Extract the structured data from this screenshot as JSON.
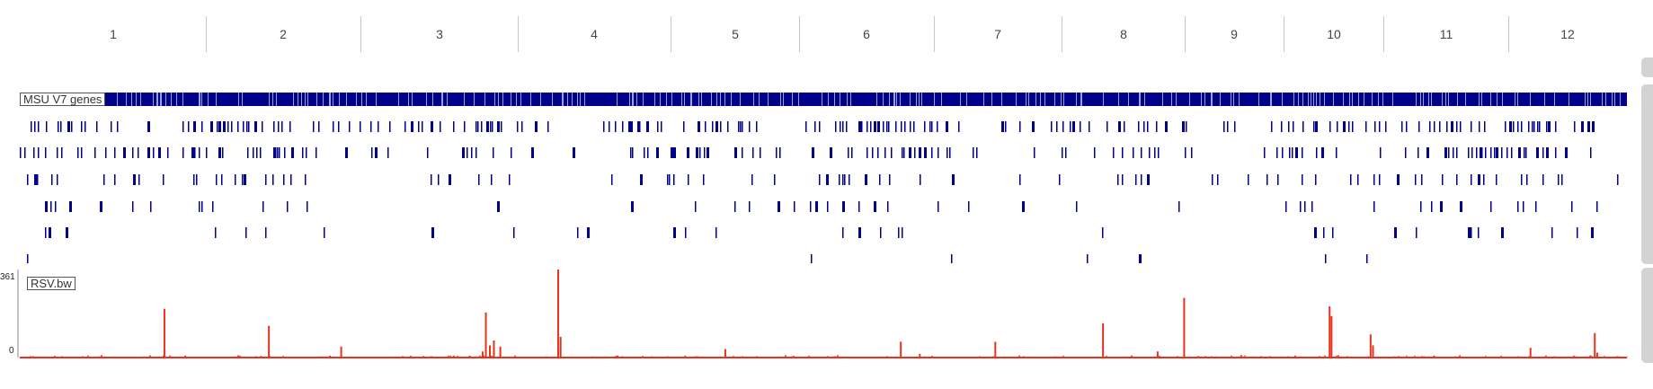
{
  "chromosomes": [
    {
      "label": "1",
      "length": 43.27
    },
    {
      "label": "2",
      "length": 35.94
    },
    {
      "label": "3",
      "length": 36.41
    },
    {
      "label": "4",
      "length": 35.5
    },
    {
      "label": "5",
      "length": 29.96
    },
    {
      "label": "6",
      "length": 31.25
    },
    {
      "label": "7",
      "length": 29.7
    },
    {
      "label": "8",
      "length": 28.44
    },
    {
      "label": "9",
      "length": 23.01
    },
    {
      "label": "10",
      "length": 23.21
    },
    {
      "label": "11",
      "length": 29.02
    },
    {
      "label": "12",
      "length": 27.53
    }
  ],
  "gene_track": {
    "label": "MSU V7 genes",
    "color": "#00008b"
  },
  "signal_track": {
    "label": "RSV.bw",
    "color": "#e8321e",
    "axis_max_label": "361",
    "axis_min_label": "0",
    "y_max": 361,
    "peaks": [
      {
        "x": 0.015,
        "y": 4
      },
      {
        "x": 0.09,
        "y": 200
      },
      {
        "x": 0.103,
        "y": 8
      },
      {
        "x": 0.155,
        "y": 130
      },
      {
        "x": 0.193,
        "y": 8
      },
      {
        "x": 0.2,
        "y": 45
      },
      {
        "x": 0.28,
        "y": 8
      },
      {
        "x": 0.288,
        "y": 25
      },
      {
        "x": 0.29,
        "y": 185
      },
      {
        "x": 0.2925,
        "y": 50
      },
      {
        "x": 0.295,
        "y": 70
      },
      {
        "x": 0.299,
        "y": 45
      },
      {
        "x": 0.335,
        "y": 361
      },
      {
        "x": 0.3365,
        "y": 85
      },
      {
        "x": 0.372,
        "y": 8
      },
      {
        "x": 0.403,
        "y": 5
      },
      {
        "x": 0.439,
        "y": 35
      },
      {
        "x": 0.5482,
        "y": 65
      },
      {
        "x": 0.56,
        "y": 15
      },
      {
        "x": 0.607,
        "y": 65
      },
      {
        "x": 0.674,
        "y": 140
      },
      {
        "x": 0.708,
        "y": 25
      },
      {
        "x": 0.7245,
        "y": 245
      },
      {
        "x": 0.76,
        "y": 10
      },
      {
        "x": 0.815,
        "y": 210
      },
      {
        "x": 0.8162,
        "y": 170
      },
      {
        "x": 0.8405,
        "y": 95
      },
      {
        "x": 0.842,
        "y": 50
      },
      {
        "x": 0.88,
        "y": 8
      },
      {
        "x": 0.94,
        "y": 40
      },
      {
        "x": 0.955,
        "y": 5
      },
      {
        "x": 0.98,
        "y": 100
      },
      {
        "x": 0.9815,
        "y": 20
      }
    ]
  },
  "colors": {
    "gene": "#00008b",
    "signal": "#e8321e",
    "separator": "#c8c8c8",
    "scrollbar": "#d3d3d3"
  }
}
